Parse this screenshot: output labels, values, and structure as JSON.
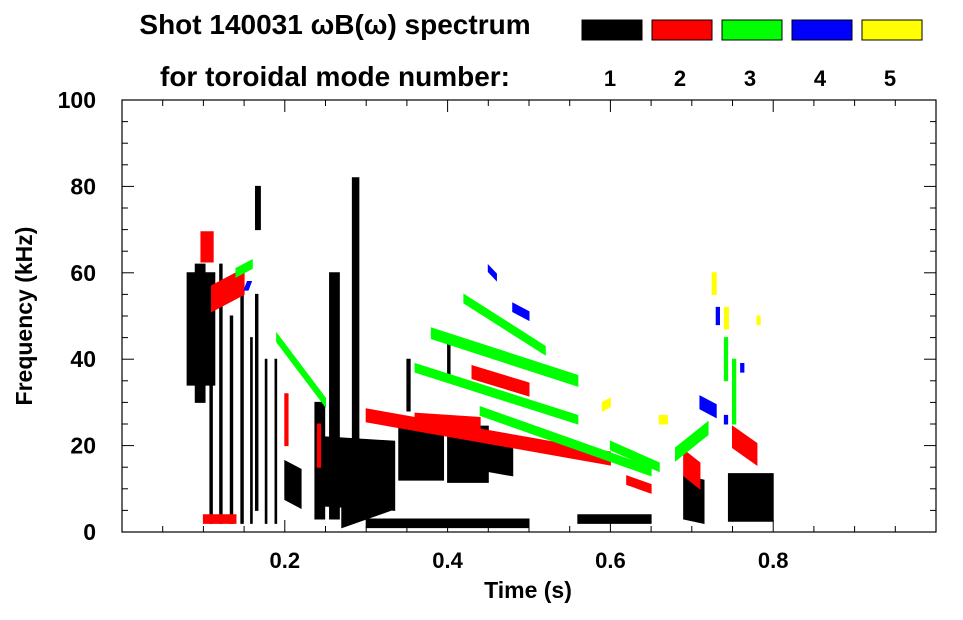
{
  "chart_data": {
    "type": "heatmap",
    "title_line1": "Shot 140031 ωB(ω) spectrum",
    "title_line2": "for toroidal mode number:",
    "xlabel": "Time (s)",
    "ylabel": "Frequency (kHz)",
    "xlim": [
      0,
      1.0
    ],
    "ylim": [
      0,
      100
    ],
    "x_major_ticks": [
      0.2,
      0.4,
      0.6,
      0.8
    ],
    "x_tick_labels": [
      "0.2",
      "0.4",
      "0.6",
      "0.8"
    ],
    "x_minor_step": 0.05,
    "y_major_ticks": [
      0,
      20,
      40,
      60,
      80,
      100
    ],
    "y_tick_labels": [
      "0",
      "20",
      "40",
      "60",
      "80",
      "100"
    ],
    "y_minor_step": 5,
    "legend": [
      {
        "mode": 1,
        "label": "1",
        "color": "#000000"
      },
      {
        "mode": 2,
        "label": "2",
        "color": "#ff0000"
      },
      {
        "mode": 3,
        "label": "3",
        "color": "#00ff00"
      },
      {
        "mode": 4,
        "label": "4",
        "color": "#0000ff"
      },
      {
        "mode": 5,
        "label": "5",
        "color": "#ffff00"
      }
    ],
    "feature_format": [
      "mode",
      "t_start_s",
      "f_start_kHz",
      "t_end_s",
      "f_end_kHz",
      "dt_s",
      "df_kHz"
    ],
    "features": [
      [
        1,
        0.08,
        47,
        0.114,
        47,
        0,
        26
      ],
      [
        1,
        0.09,
        30,
        0.09,
        62,
        0.012,
        0
      ],
      [
        1,
        0.108,
        2,
        0.108,
        58,
        0.003,
        0
      ],
      [
        1,
        0.12,
        2,
        0.12,
        62,
        0.003,
        0
      ],
      [
        1,
        0.133,
        2,
        0.133,
        50,
        0.003,
        0
      ],
      [
        1,
        0.146,
        2,
        0.146,
        60,
        0.003,
        0
      ],
      [
        1,
        0.158,
        2,
        0.158,
        45,
        0.002,
        0
      ],
      [
        1,
        0.176,
        2,
        0.176,
        40,
        0.002,
        0
      ],
      [
        1,
        0.188,
        2,
        0.188,
        40,
        0.002,
        0
      ],
      [
        1,
        0.164,
        70,
        0.164,
        80,
        0.006,
        0
      ],
      [
        1,
        0.164,
        5,
        0.164,
        55,
        0.003,
        0
      ],
      [
        1,
        0.2,
        12,
        0.22,
        10,
        0,
        9
      ],
      [
        1,
        0.237,
        3,
        0.237,
        30,
        0.012,
        0
      ],
      [
        1,
        0.255,
        3,
        0.255,
        60,
        0.012,
        0
      ],
      [
        1,
        0.283,
        5,
        0.283,
        82,
        0.008,
        0
      ],
      [
        1,
        0.25,
        14,
        0.335,
        13,
        0,
        16
      ],
      [
        1,
        0.27,
        5,
        0.33,
        9,
        0,
        8
      ],
      [
        1,
        0.34,
        18,
        0.395,
        18,
        0,
        12
      ],
      [
        1,
        0.4,
        18,
        0.45,
        18,
        0,
        13
      ],
      [
        1,
        0.45,
        18,
        0.48,
        17,
        0,
        8
      ],
      [
        1,
        0.35,
        28,
        0.35,
        40,
        0.004,
        0
      ],
      [
        1,
        0.4,
        35,
        0.4,
        45,
        0.003,
        0
      ],
      [
        1,
        0.69,
        8,
        0.715,
        7,
        0,
        10
      ],
      [
        1,
        0.745,
        8,
        0.8,
        8,
        0,
        11
      ],
      [
        1,
        0.56,
        3,
        0.65,
        3,
        0,
        2
      ],
      [
        1,
        0.3,
        2,
        0.5,
        2,
        0,
        2
      ],
      [
        2,
        0.097,
        66,
        0.112,
        66,
        0,
        7
      ],
      [
        2,
        0.11,
        54,
        0.15,
        58,
        0,
        6
      ],
      [
        2,
        0.2,
        20,
        0.2,
        32,
        0.004,
        0
      ],
      [
        2,
        0.24,
        15,
        0.24,
        25,
        0.004,
        0
      ],
      [
        2,
        0.3,
        27,
        0.6,
        17,
        0,
        3
      ],
      [
        2,
        0.36,
        26,
        0.44,
        25,
        0,
        3
      ],
      [
        2,
        0.43,
        37,
        0.5,
        33,
        0,
        3
      ],
      [
        2,
        0.69,
        16,
        0.71,
        13,
        0,
        6
      ],
      [
        2,
        0.75,
        22,
        0.78,
        18,
        0,
        5
      ],
      [
        2,
        0.1,
        3,
        0.14,
        3,
        0,
        2
      ],
      [
        2,
        0.62,
        12,
        0.65,
        10,
        0,
        2
      ],
      [
        3,
        0.42,
        54,
        0.52,
        42,
        0,
        2
      ],
      [
        3,
        0.38,
        46,
        0.56,
        35,
        0,
        2.5
      ],
      [
        3,
        0.36,
        38,
        0.56,
        26,
        0,
        2
      ],
      [
        3,
        0.44,
        28,
        0.65,
        14,
        0,
        2
      ],
      [
        3,
        0.6,
        20,
        0.66,
        15,
        0,
        2
      ],
      [
        3,
        0.14,
        60,
        0.16,
        62,
        0,
        2
      ],
      [
        3,
        0.19,
        45,
        0.25,
        30,
        0,
        2
      ],
      [
        3,
        0.68,
        18,
        0.72,
        24,
        0,
        3
      ],
      [
        3,
        0.75,
        25,
        0.75,
        40,
        0.004,
        0
      ],
      [
        3,
        0.74,
        35,
        0.74,
        45,
        0.004,
        0
      ],
      [
        4,
        0.48,
        52,
        0.5,
        50,
        0,
        2
      ],
      [
        4,
        0.71,
        30,
        0.73,
        28,
        0,
        3
      ],
      [
        4,
        0.73,
        48,
        0.73,
        52,
        0.004,
        0
      ],
      [
        4,
        0.76,
        37,
        0.76,
        39,
        0.004,
        0
      ],
      [
        4,
        0.15,
        57,
        0.155,
        57,
        0.004,
        2
      ],
      [
        4,
        0.74,
        25,
        0.74,
        27,
        0.004,
        0
      ],
      [
        4,
        0.45,
        61,
        0.46,
        59,
        0,
        1.5
      ],
      [
        5,
        0.725,
        55,
        0.725,
        60,
        0.005,
        0
      ],
      [
        5,
        0.74,
        47,
        0.74,
        52,
        0.005,
        0
      ],
      [
        5,
        0.59,
        29,
        0.6,
        30,
        0,
        2
      ],
      [
        5,
        0.66,
        26,
        0.67,
        26,
        0,
        2
      ],
      [
        5,
        0.78,
        48,
        0.78,
        50,
        0.004,
        0
      ]
    ]
  }
}
